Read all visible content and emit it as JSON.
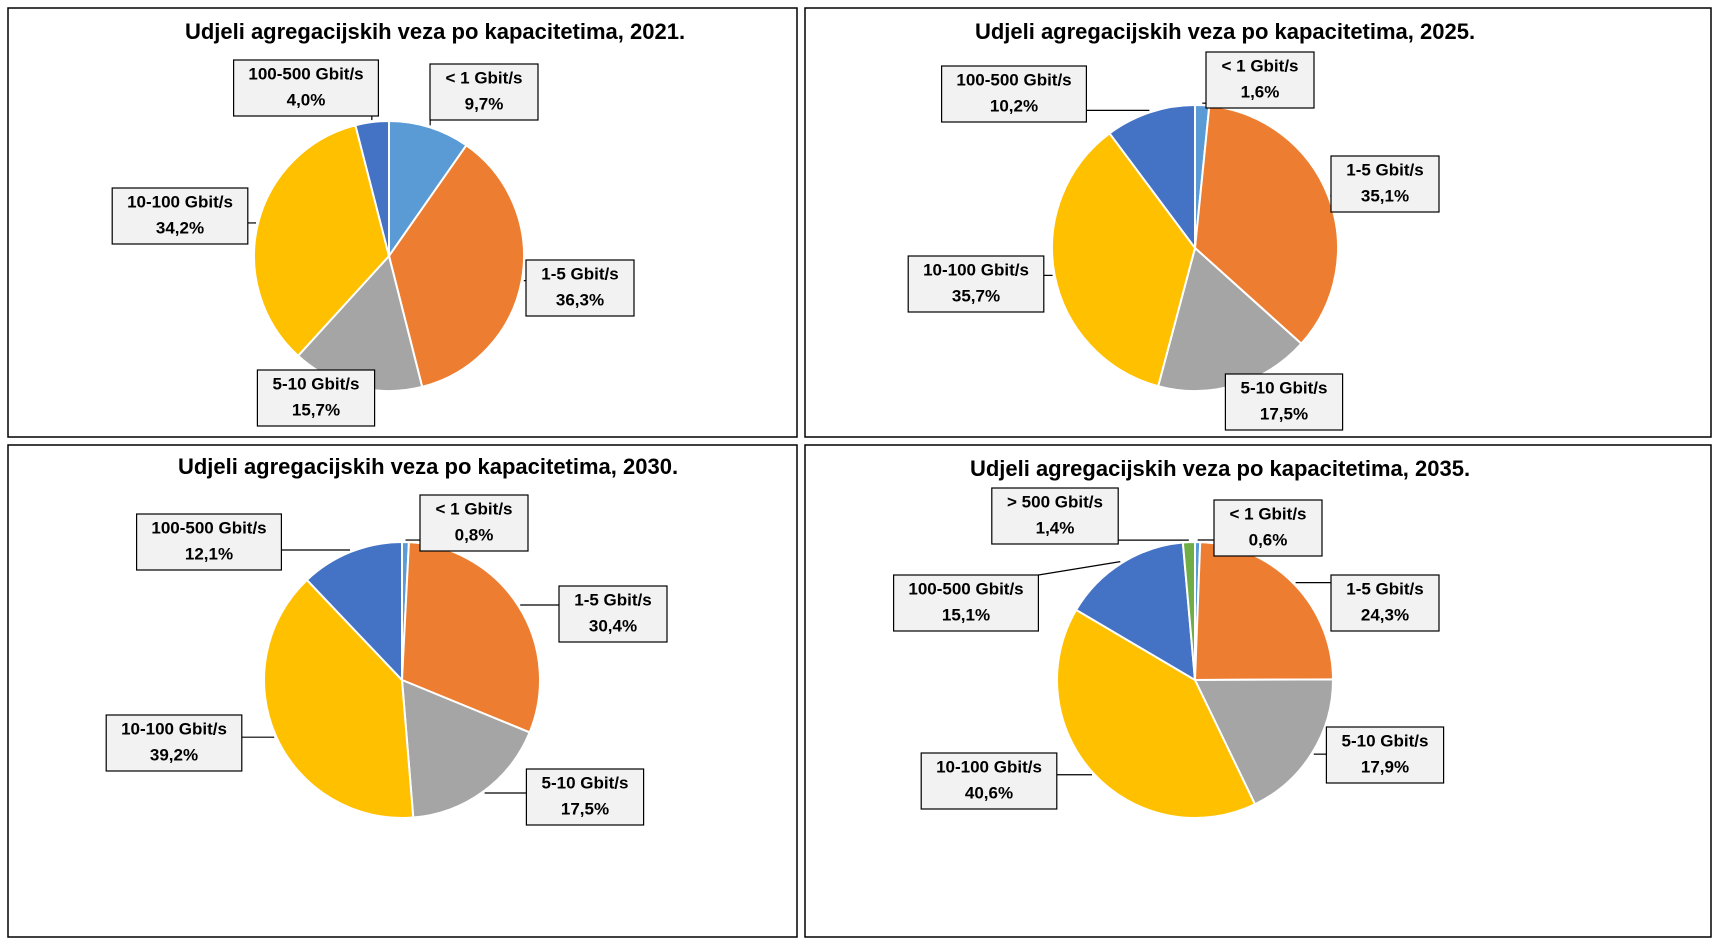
{
  "chart_data": [
    {
      "type": "pie",
      "title": "Udjeli agregacijskih veza po kapacitetima, 2021.",
      "categories": [
        "< 1 Gbit/s",
        "1-5 Gbit/s",
        "5-10 Gbit/s",
        "10-100 Gbit/s",
        "100-500 Gbit/s"
      ],
      "values": [
        9.7,
        36.3,
        15.7,
        34.2,
        4.0
      ],
      "value_labels": [
        "9,7%",
        "36,3%",
        "15,7%",
        "34,2%",
        "4,0%"
      ],
      "colors": [
        "#5b9bd5",
        "#ed7d31",
        "#a5a5a5",
        "#ffc000",
        "#4472c4"
      ]
    },
    {
      "type": "pie",
      "title": "Udjeli agregacijskih veza po kapacitetima, 2025.",
      "categories": [
        "< 1 Gbit/s",
        "1-5 Gbit/s",
        "5-10 Gbit/s",
        "10-100 Gbit/s",
        "100-500 Gbit/s"
      ],
      "values": [
        1.6,
        35.1,
        17.5,
        35.7,
        10.2
      ],
      "value_labels": [
        "1,6%",
        "35,1%",
        "17,5%",
        "35,7%",
        "10,2%"
      ],
      "colors": [
        "#5b9bd5",
        "#ed7d31",
        "#a5a5a5",
        "#ffc000",
        "#4472c4"
      ]
    },
    {
      "type": "pie",
      "title": "Udjeli agregacijskih veza po kapacitetima, 2030.",
      "categories": [
        "< 1 Gbit/s",
        "1-5 Gbit/s",
        "5-10 Gbit/s",
        "10-100 Gbit/s",
        "100-500 Gbit/s"
      ],
      "values": [
        0.8,
        30.4,
        17.5,
        39.2,
        12.1
      ],
      "value_labels": [
        "0,8%",
        "30,4%",
        "17,5%",
        "39,2%",
        "12,1%"
      ],
      "colors": [
        "#5b9bd5",
        "#ed7d31",
        "#a5a5a5",
        "#ffc000",
        "#4472c4"
      ]
    },
    {
      "type": "pie",
      "title": "Udjeli agregacijskih veza po kapacitetima, 2035.",
      "categories": [
        "< 1 Gbit/s",
        "1-5 Gbit/s",
        "5-10 Gbit/s",
        "10-100 Gbit/s",
        "100-500 Gbit/s",
        "> 500 Gbit/s"
      ],
      "values": [
        0.6,
        24.3,
        17.9,
        40.6,
        15.1,
        1.4
      ],
      "value_labels": [
        "0,6%",
        "24,3%",
        "17,9%",
        "40,6%",
        "15,1%",
        "1,4%"
      ],
      "colors": [
        "#5b9bd5",
        "#ed7d31",
        "#a5a5a5",
        "#ffc000",
        "#4472c4",
        "#70ad47"
      ]
    }
  ]
}
